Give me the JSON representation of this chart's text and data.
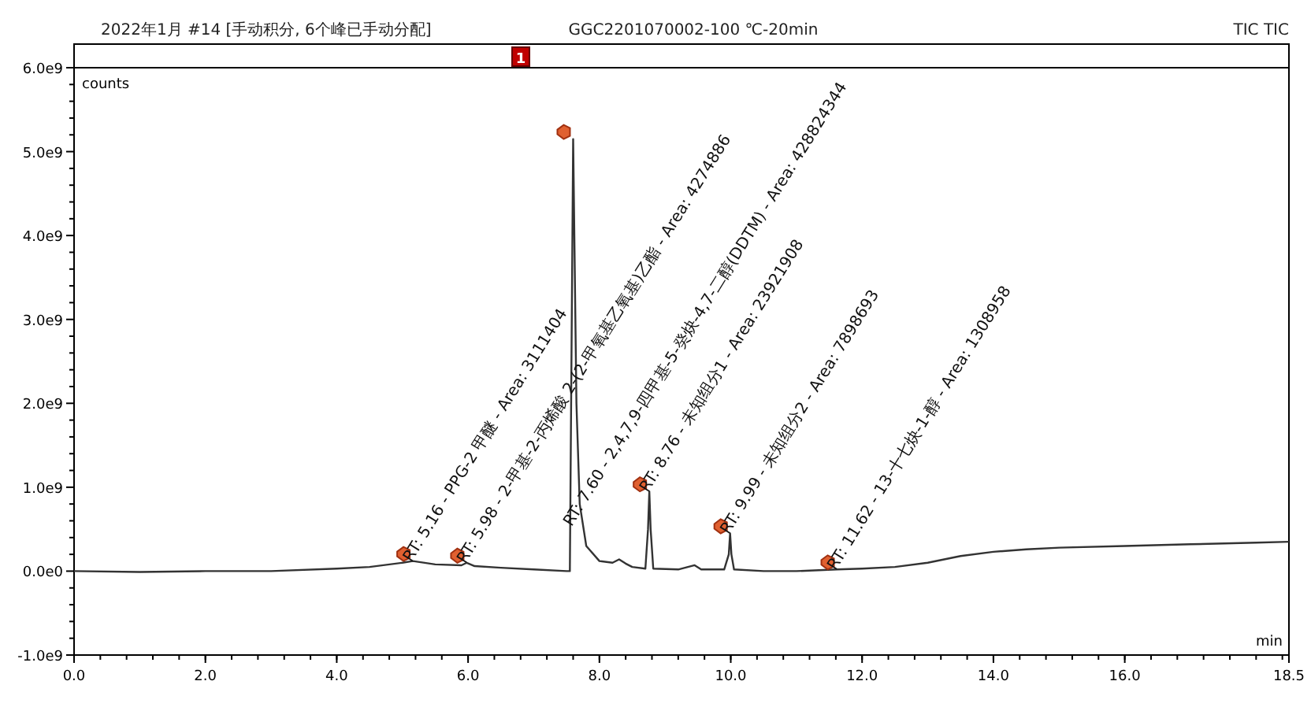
{
  "chart_data": {
    "type": "line",
    "title": "2022年1月 #14 [手动积分, 6个峰已手动分配]",
    "subtitle": "GGC2201070002-100 ℃-20min",
    "xlabel": "min",
    "ylabel": "counts",
    "xlim": [
      0,
      18.5
    ],
    "ylim": [
      -1000000000,
      6000000000
    ],
    "xticks": [
      {
        "value": 0,
        "label": "0.0"
      },
      {
        "value": 2,
        "label": "2.0"
      },
      {
        "value": 4,
        "label": "4.0"
      },
      {
        "value": 6,
        "label": "6.0"
      },
      {
        "value": 8,
        "label": "8.0"
      },
      {
        "value": 10,
        "label": "10.0"
      },
      {
        "value": 12,
        "label": "12.0"
      },
      {
        "value": 14,
        "label": "14.0"
      },
      {
        "value": 16,
        "label": "16.0"
      },
      {
        "value": 18.5,
        "label": "18.5"
      }
    ],
    "yticks": [
      {
        "value": -1000000000,
        "label": "-1.0e9"
      },
      {
        "value": 0,
        "label": "0.0e0"
      },
      {
        "value": 1000000000,
        "label": "1.0e9"
      },
      {
        "value": 2000000000,
        "label": "2.0e9"
      },
      {
        "value": 3000000000,
        "label": "3.0e9"
      },
      {
        "value": 4000000000,
        "label": "4.0e9"
      },
      {
        "value": 5000000000,
        "label": "5.0e9"
      },
      {
        "value": 6000000000,
        "label": "6.0e9"
      }
    ],
    "grid": false,
    "marker": "none",
    "line_style": "solid",
    "x": [
      0,
      1,
      2,
      3,
      4,
      4.5,
      5.0,
      5.16,
      5.5,
      5.9,
      5.98,
      6.1,
      6.5,
      7.0,
      7.5,
      7.55,
      7.6,
      7.65,
      7.7,
      7.8,
      8.0,
      8.2,
      8.3,
      8.4,
      8.5,
      8.7,
      8.74,
      8.76,
      8.78,
      8.82,
      9.2,
      9.45,
      9.55,
      9.9,
      9.97,
      9.99,
      10.01,
      10.05,
      10.5,
      11.0,
      11.62,
      12.0,
      12.5,
      13.0,
      13.5,
      14.0,
      14.5,
      15.0,
      16.0,
      17.0,
      18.0,
      18.5
    ],
    "series": [
      {
        "color": "#333333",
        "values": [
          0,
          -10000000,
          0,
          0,
          30000000,
          50000000,
          100000000,
          120000000,
          80000000,
          70000000,
          100000000,
          60000000,
          40000000,
          20000000,
          0,
          0,
          5150000000,
          2000000000,
          800000000,
          300000000,
          120000000,
          100000000,
          140000000,
          90000000,
          50000000,
          30000000,
          500000000,
          950000000,
          500000000,
          30000000,
          20000000,
          70000000,
          20000000,
          20000000,
          200000000,
          450000000,
          200000000,
          20000000,
          0,
          0,
          20000000,
          30000000,
          50000000,
          100000000,
          180000000,
          230000000,
          260000000,
          280000000,
          300000000,
          320000000,
          340000000,
          350000000
        ]
      }
    ],
    "annotations": [
      {
        "text": "RT: 5.16 - PPG-2 甲醚 - Area: 3111404",
        "x": 5.16,
        "y": 120000000
      },
      {
        "text": "RT: 5.98 - 2-甲基-2-丙烯酸 2-(2-甲氧基乙氧基)乙酯 - Area: 4274886",
        "x": 5.98,
        "y": 100000000
      },
      {
        "text": "RT: 7.60 - 2,4,7,9-四甲基-5-癸炔-4,7-二醇(DDTM) - Area: 428824344",
        "x": 7.6,
        "y": 5150000000
      },
      {
        "text": "RT: 8.76 - 未知组分1 - Area: 23921908",
        "x": 8.76,
        "y": 950000000
      },
      {
        "text": "RT: 9.99 - 未知组分2 - Area: 7898693",
        "x": 9.99,
        "y": 450000000
      },
      {
        "text": "RT: 11.62 - 13-十七炔-1-醇 - Area: 1308958",
        "x": 11.62,
        "y": 20000000
      },
      "1",
      "TIC TIC"
    ]
  }
}
